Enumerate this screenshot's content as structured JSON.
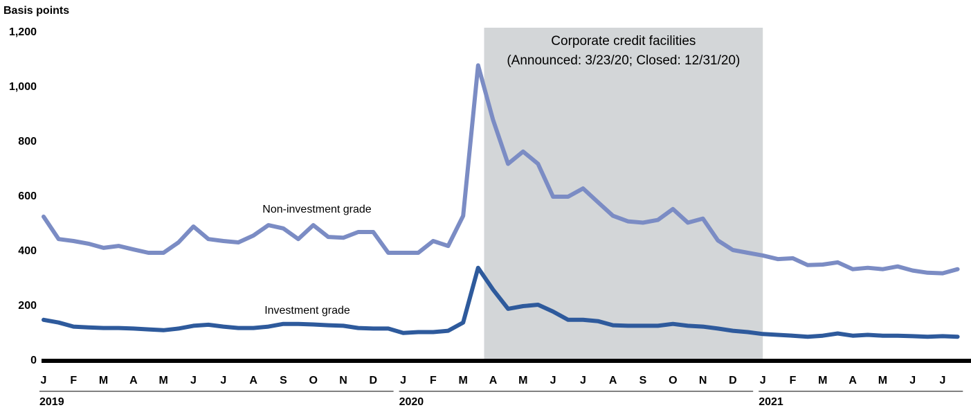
{
  "chart_data": {
    "type": "line",
    "y_label": "Basis points",
    "annotation": [
      "Corporate credit facilities",
      "(Announced: 3/23/20; Closed: 12/31/20)"
    ],
    "shade_range": [
      29.4,
      48
    ],
    "categories": [
      "J",
      null,
      "F",
      null,
      "M",
      null,
      "A",
      null,
      "M",
      null,
      "J",
      null,
      "J",
      null,
      "A",
      null,
      "S",
      null,
      "O",
      null,
      "N",
      null,
      "D",
      null,
      "J",
      null,
      "F",
      null,
      "M",
      null,
      "A",
      null,
      "M",
      null,
      "J",
      null,
      "J",
      null,
      "A",
      null,
      "S",
      null,
      "O",
      null,
      "N",
      null,
      "D",
      null,
      "J",
      null,
      "F",
      null,
      "M",
      null,
      "A",
      null,
      "M",
      null,
      "J",
      null,
      "J",
      null
    ],
    "years": [
      "2019",
      "2020",
      "2021"
    ],
    "series": [
      {
        "name": "Non-investment grade",
        "color": "#7b8cc4",
        "values": [
          527,
          445,
          438,
          428,
          413,
          420,
          407,
          395,
          395,
          433,
          491,
          445,
          438,
          433,
          458,
          496,
          484,
          445,
          496,
          453,
          450,
          471,
          471,
          395,
          395,
          395,
          438,
          420,
          530,
          1080,
          880,
          720,
          765,
          720,
          600,
          600,
          630,
          580,
          530,
          510,
          505,
          515,
          555,
          505,
          520,
          440,
          405,
          395,
          385,
          372,
          375,
          350,
          352,
          360,
          335,
          340,
          335,
          345,
          330,
          322,
          320,
          335
        ]
      },
      {
        "name": "Investment grade",
        "color": "#2e5a9c",
        "values": [
          150,
          140,
          125,
          122,
          120,
          120,
          118,
          115,
          112,
          118,
          128,
          132,
          125,
          120,
          120,
          125,
          135,
          135,
          133,
          130,
          128,
          120,
          118,
          118,
          102,
          105,
          105,
          110,
          140,
          340,
          260,
          190,
          200,
          205,
          180,
          150,
          150,
          145,
          130,
          128,
          128,
          128,
          135,
          128,
          125,
          118,
          110,
          105,
          98,
          95,
          92,
          88,
          92,
          100,
          92,
          95,
          92,
          92,
          90,
          88,
          90,
          88
        ]
      }
    ],
    "ylim": [
      0,
      1200
    ],
    "yticks": [
      0,
      200,
      400,
      600,
      800,
      {
        "value": 1000,
        "label": "1,000"
      },
      {
        "value": 1200,
        "label": "1,200"
      }
    ],
    "shade_color": "#d3d6d8"
  }
}
